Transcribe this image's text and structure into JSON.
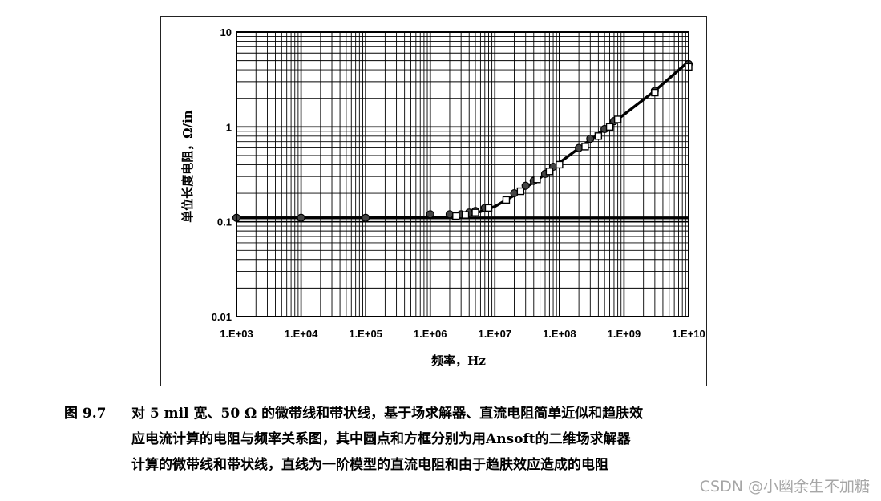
{
  "chart_data": {
    "type": "scatter",
    "title": "",
    "xlabel": "频率，Hz",
    "ylabel": "单位长度电阻，Ω/in",
    "x_scale": "log",
    "y_scale": "log",
    "xlim": [
      1000,
      10000000000
    ],
    "ylim": [
      0.01,
      10
    ],
    "grid": true,
    "legend": "none",
    "x_tick_labels": [
      "1.E+03",
      "1.E+04",
      "1.E+05",
      "1.E+06",
      "1.E+07",
      "1.E+08",
      "1.E+09",
      "1.E+10"
    ],
    "y_tick_labels": [
      "0.01",
      "0.1",
      "1",
      "10"
    ],
    "series": [
      {
        "kind": "line",
        "x": [
          1000,
          10000000000
        ],
        "y": [
          0.11,
          0.11
        ]
      },
      {
        "kind": "line",
        "x": [
          1000,
          100000,
          1000000,
          2000000,
          4000000,
          6000000,
          10000000,
          20000000,
          50000000,
          100000000,
          300000000,
          1000000000,
          3000000000,
          10000000000
        ],
        "y": [
          0.11,
          0.11,
          0.111,
          0.113,
          0.12,
          0.128,
          0.145,
          0.19,
          0.29,
          0.42,
          0.73,
          1.35,
          2.4,
          4.9
        ]
      },
      {
        "kind": "circle",
        "x": [
          1000,
          10000,
          100000,
          1000000,
          2000000,
          3000000,
          4000000,
          5000000,
          7000000,
          20000000,
          30000000,
          40000000,
          60000000,
          80000000,
          200000000,
          300000000,
          500000000,
          700000000,
          3000000000,
          10000000000
        ],
        "y": [
          0.11,
          0.11,
          0.11,
          0.12,
          0.12,
          0.12,
          0.125,
          0.13,
          0.14,
          0.2,
          0.24,
          0.27,
          0.32,
          0.38,
          0.6,
          0.75,
          0.95,
          1.15,
          2.4,
          4.6
        ]
      },
      {
        "kind": "square",
        "x": [
          2500000,
          3500000,
          5000000,
          8000000,
          15000000,
          25000000,
          45000000,
          70000000,
          100000000,
          250000000,
          400000000,
          600000000,
          800000000,
          3000000000,
          10000000000
        ],
        "y": [
          0.115,
          0.118,
          0.125,
          0.14,
          0.17,
          0.21,
          0.28,
          0.34,
          0.4,
          0.62,
          0.8,
          1.0,
          1.2,
          2.3,
          4.3
        ]
      }
    ]
  },
  "caption": {
    "figure_number": "图 9.7",
    "lines": [
      "对 5 mil 宽、50 Ω 的微带线和带状线，基于场求解器、直流电阻简单近似和趋肤效",
      "应电流计算的电阻与频率关系图，其中圆点和方框分别为用Ansoft的二维场求解器",
      "计算的微带线和带状线，直线为一阶模型的直流电阻和由于趋肤效应造成的电阻"
    ]
  },
  "watermark": "CSDN @小幽余生不加糖"
}
